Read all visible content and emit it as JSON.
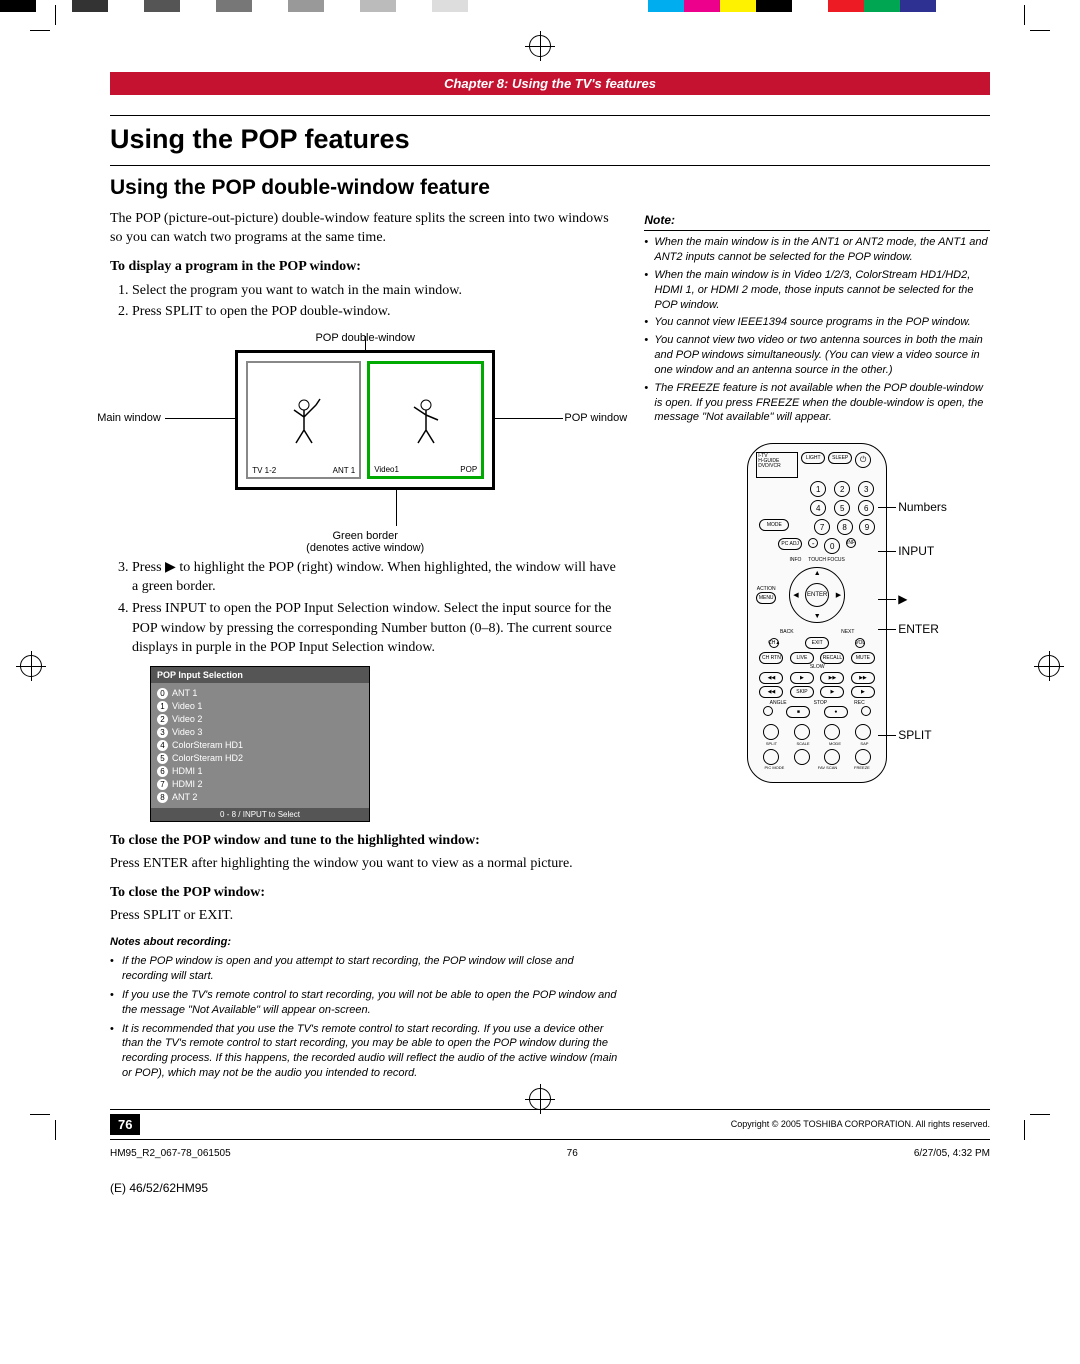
{
  "colorbar": [
    "#000000",
    "#ffffff",
    "#333333",
    "#ffffff",
    "#555555",
    "#ffffff",
    "#777777",
    "#ffffff",
    "#999999",
    "#ffffff",
    "#bbbbbb",
    "#ffffff",
    "#dddddd",
    "#ffffff",
    "#ffffff",
    "#ffffff",
    "#ffffff",
    "#ffffff",
    "#00aeef",
    "#ec008c",
    "#fff200",
    "#000000",
    "#ffffff",
    "#ed1c24",
    "#00a651",
    "#2e3192",
    "#ffffff",
    "#ffffff",
    "#ffffff",
    "#ffffff"
  ],
  "chapter": "Chapter 8: Using the TV's features",
  "h1": "Using the POP features",
  "h2": "Using the POP double-window feature",
  "intro": "The POP (picture-out-picture) double-window feature splits the screen into two windows so you can watch two programs at the same time.",
  "sub1": "To display a program in the POP window:",
  "steps1": [
    "Select the program you want to watch in the main window.",
    "Press SPLIT to open the POP double-window."
  ],
  "diagram": {
    "top": "POP double-window",
    "left": "Main window",
    "right": "POP window",
    "bl1": "TV 1-2",
    "bl2": "ANT 1",
    "bl3": "Video1",
    "bl4": "POP",
    "bottom1": "Green border",
    "bottom2": "(denotes active window)"
  },
  "step3": "Press ▶ to highlight the POP (right) window. When highlighted, the window will have a green border.",
  "step4": "Press INPUT to open the POP Input Selection window. Select the input source for the POP window by pressing the corresponding Number button (0–8). The current source displays in purple in the POP Input Selection window.",
  "popInput": {
    "title": "POP Input Selection",
    "items": [
      "ANT 1",
      "Video 1",
      "Video 2",
      "Video 3",
      "ColorSteram HD1",
      "ColorSteram HD2",
      "HDMI 1",
      "HDMI 2",
      "ANT 2"
    ],
    "footer": "0 - 8 / INPUT to Select"
  },
  "sub2": "To close the POP window and tune to the highlighted window:",
  "p2": "Press ENTER after highlighting the window you want to view as a normal picture.",
  "sub3": "To close the POP window:",
  "p3": "Press SPLIT or EXIT.",
  "notesRecHead": "Notes about recording:",
  "notesRec": [
    "If the POP window is open and you attempt to start recording, the POP window will close and recording will start.",
    "If you use the TV's remote control to start recording, you will not be able to open the POP window and the message \"Not Available\" will appear on-screen.",
    "It is recommended that you use the TV's remote control to start recording. If you use a device other than the TV's remote control to start recording, you may be able to open the POP window during the recording process. If this happens, the recorded audio will reflect the audio of the active window (main or POP), which may not be the audio you intended to record."
  ],
  "noteHead": "Note:",
  "notes": [
    "When the main window is in the ANT1 or ANT2 mode, the ANT1 and ANT2 inputs cannot be selected for the POP window.",
    "When the main window is in Video 1/2/3, ColorStream HD1/HD2, HDMI 1, or HDMI 2 mode, those inputs cannot be selected for the POP window.",
    "You cannot view IEEE1394 source programs in the POP window.",
    "You cannot view two video or two antenna sources in both the main and POP windows simultaneously. (You can view a video source in one window and an antenna source in the other.)",
    "The FREEZE feature is not available when the POP double-window is open. If you press FREEZE when the double-window is open, the message \"Not available\" will appear."
  ],
  "remoteLabels": {
    "numbers": "Numbers",
    "input": "INPUT",
    "arrow": "▶",
    "enter": "ENTER",
    "split": "SPLIT"
  },
  "pageNum": "76",
  "copyright": "Copyright © 2005 TOSHIBA CORPORATION. All rights reserved.",
  "printFooter": {
    "left": "HM95_R2_067-78_061505",
    "mid": "76",
    "right": "6/27/05, 4:32 PM"
  },
  "docCode": "(E) 46/52/62HM95"
}
